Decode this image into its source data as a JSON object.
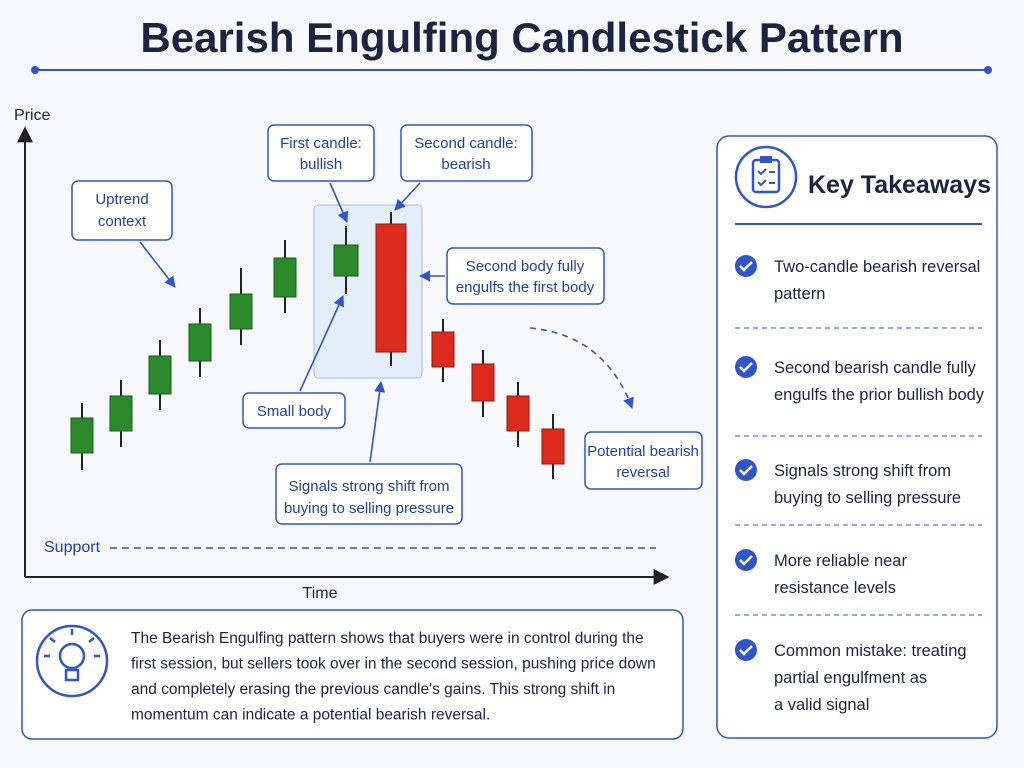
{
  "title": "Bearish Engulfing Candlestick Pattern",
  "axes": {
    "y_label": "Price",
    "x_label": "Time"
  },
  "support_label": "Support",
  "callouts": {
    "uptrend": [
      "Uptrend",
      "context"
    ],
    "first_candle": [
      "First candle:",
      "bullish"
    ],
    "second_candle": [
      "Second candle:",
      "bearish"
    ],
    "engulfs": [
      "Second body fully",
      "engulfs the first body"
    ],
    "small_body": [
      "Small body"
    ],
    "signals": [
      "Signals strong shift from",
      "buying to selling pressure"
    ],
    "reversal": [
      "Potential bearish",
      "reversal"
    ]
  },
  "description": [
    "The Bearish Engulfing pattern shows that buyers were in control during the",
    "first session, but sellers took over in the second session, pushing price down",
    "and completely erasing the previous candle's gains. This strong shift in",
    "momentum can indicate a potential bearish reversal."
  ],
  "takeaways": {
    "title": "Key Takeaways",
    "items": [
      [
        "Two-candle bearish reversal",
        "pattern"
      ],
      [
        "Second bearish candle fully",
        "engulfs the prior bullish body"
      ],
      [
        "Signals strong shift from",
        "buying to selling pressure"
      ],
      [
        "More reliable near",
        "resistance levels"
      ],
      [
        "Common mistake: treating",
        "partial engulfment as",
        "a valid signal"
      ]
    ]
  }
}
